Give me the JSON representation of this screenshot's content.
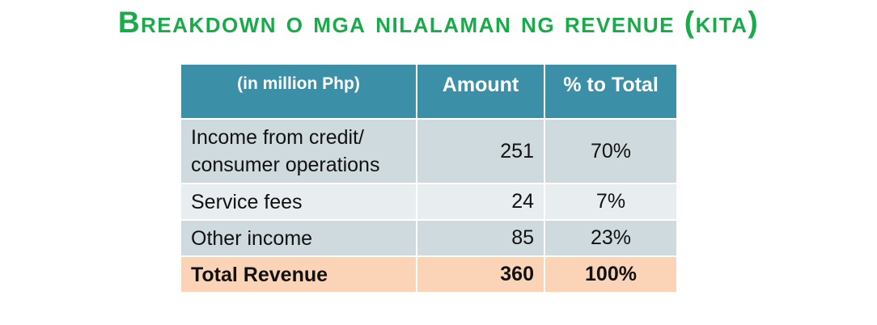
{
  "title": "Breakdown o mga nilalaman ng revenue (kita)",
  "table": {
    "headers": {
      "label": "(in million Php)",
      "amount": "Amount",
      "percent": "% to Total"
    },
    "rows": [
      {
        "label": "Income from credit/ consumer operations",
        "amount": "251",
        "percent": "70%"
      },
      {
        "label": "Service fees",
        "amount": "24",
        "percent": "7%"
      },
      {
        "label": "Other income",
        "amount": "85",
        "percent": "23%"
      }
    ],
    "total": {
      "label": "Total Revenue",
      "amount": "360",
      "percent": "100%"
    }
  },
  "colors": {
    "title": "#1aaa4a",
    "header_bg": "#3b8fa6",
    "row_dark": "#cfdadf",
    "row_light": "#e8eef0",
    "total_bg": "#fbd4b8"
  }
}
